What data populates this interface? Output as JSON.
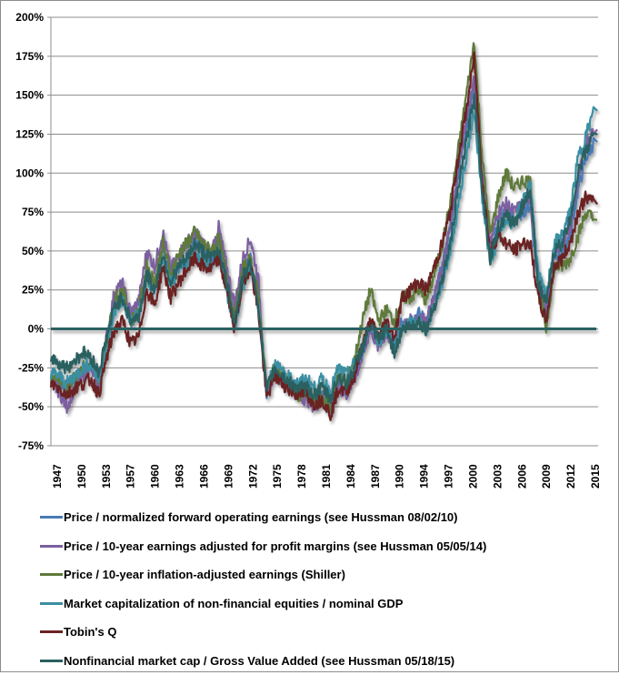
{
  "chart_data": {
    "type": "line",
    "title": "",
    "xlabel": "",
    "ylabel": "",
    "ylim": [
      -75,
      200
    ],
    "xlim": [
      1947,
      2015.5
    ],
    "grid": true,
    "legend_position": "bottom",
    "y_ticks": [
      "200%",
      "175%",
      "150%",
      "125%",
      "100%",
      "75%",
      "50%",
      "25%",
      "0%",
      "-25%",
      "-50%",
      "-75%"
    ],
    "y_tick_values": [
      200,
      175,
      150,
      125,
      100,
      75,
      50,
      25,
      0,
      -25,
      -50,
      -75
    ],
    "x_ticks": [
      "1947",
      "1950",
      "1953",
      "1957",
      "1960",
      "1963",
      "1966",
      "1969",
      "1972",
      "1975",
      "1978",
      "1981",
      "1984",
      "1987",
      "1990",
      "1994",
      "1997",
      "2000",
      "2003",
      "2006",
      "2009",
      "2012",
      "2015"
    ],
    "x": [
      1947,
      1948,
      1949,
      1950,
      1951,
      1952,
      1953,
      1954,
      1955,
      1956,
      1957,
      1958,
      1959,
      1960,
      1961,
      1962,
      1963,
      1964,
      1965,
      1966,
      1967,
      1968,
      1969,
      1970,
      1971,
      1972,
      1973,
      1974,
      1975,
      1976,
      1977,
      1978,
      1979,
      1980,
      1981,
      1982,
      1983,
      1984,
      1985,
      1986,
      1987,
      1988,
      1989,
      1990,
      1991,
      1992,
      1993,
      1994,
      1995,
      1996,
      1997,
      1998,
      1999,
      2000,
      2001,
      2002,
      2003,
      2004,
      2005,
      2006,
      2007,
      2008,
      2009,
      2010,
      2011,
      2012,
      2013,
      2014,
      2015
    ],
    "series": [
      {
        "name": "Price / normalized forward operating earnings (see Hussman 08/02/10)",
        "color": "#4a7ab5",
        "values": [
          -30,
          -33,
          -38,
          -32,
          -28,
          -25,
          -35,
          -10,
          15,
          20,
          5,
          10,
          35,
          25,
          50,
          30,
          40,
          45,
          55,
          50,
          45,
          55,
          30,
          10,
          35,
          45,
          15,
          -40,
          -25,
          -30,
          -35,
          -40,
          -40,
          -45,
          -42,
          -50,
          -35,
          -40,
          -30,
          -15,
          0,
          -10,
          0,
          -10,
          5,
          5,
          10,
          5,
          20,
          40,
          65,
          100,
          130,
          155,
          95,
          45,
          70,
          75,
          70,
          75,
          80,
          25,
          10,
          45,
          50,
          60,
          90,
          110,
          120
        ]
      },
      {
        "name": "Price / 10-year earnings adjusted for profit margins (see Hussman 05/05/14)",
        "color": "#7b5fa0",
        "values": [
          -35,
          -40,
          -50,
          -38,
          -30,
          -25,
          -38,
          -5,
          25,
          28,
          10,
          18,
          50,
          40,
          62,
          38,
          48,
          55,
          62,
          55,
          48,
          65,
          40,
          15,
          45,
          58,
          30,
          -42,
          -28,
          -33,
          -38,
          -43,
          -45,
          -50,
          -45,
          -55,
          -38,
          -42,
          -32,
          -18,
          0,
          -12,
          -2,
          -12,
          2,
          5,
          8,
          5,
          20,
          40,
          65,
          105,
          135,
          160,
          100,
          55,
          75,
          80,
          75,
          80,
          85,
          30,
          15,
          50,
          55,
          65,
          95,
          120,
          128
        ]
      },
      {
        "name": "Price / 10-year inflation-adjusted earnings (Shiller)",
        "color": "#5f7a3a",
        "values": [
          -30,
          -32,
          -38,
          -30,
          -25,
          -22,
          -33,
          -8,
          20,
          25,
          5,
          12,
          40,
          30,
          55,
          35,
          48,
          55,
          62,
          55,
          50,
          58,
          35,
          5,
          38,
          45,
          20,
          -40,
          -25,
          -30,
          -36,
          -42,
          -42,
          -48,
          -44,
          -52,
          -30,
          -35,
          -20,
          5,
          25,
          5,
          12,
          5,
          20,
          20,
          25,
          18,
          35,
          55,
          80,
          115,
          150,
          185,
          110,
          60,
          85,
          100,
          90,
          95,
          95,
          30,
          0,
          40,
          40,
          45,
          60,
          75,
          70
        ]
      },
      {
        "name": "Market capitalization of non-financial equities / nominal GDP",
        "color": "#3a8fa3",
        "values": [
          -28,
          -30,
          -35,
          -30,
          -25,
          -22,
          -33,
          -10,
          12,
          18,
          5,
          10,
          30,
          25,
          45,
          28,
          38,
          42,
          48,
          45,
          40,
          45,
          25,
          0,
          28,
          40,
          15,
          -38,
          -22,
          -28,
          -32,
          -35,
          -32,
          -38,
          -32,
          -40,
          -25,
          -30,
          -22,
          -12,
          5,
          -8,
          0,
          -12,
          2,
          3,
          5,
          0,
          15,
          30,
          50,
          80,
          110,
          140,
          85,
          40,
          60,
          70,
          68,
          80,
          95,
          35,
          20,
          55,
          60,
          75,
          110,
          125,
          140
        ]
      },
      {
        "name": "Tobin's Q",
        "color": "#6b2424",
        "values": [
          -35,
          -38,
          -42,
          -38,
          -35,
          -32,
          -42,
          -18,
          0,
          5,
          -10,
          -5,
          25,
          15,
          40,
          20,
          30,
          38,
          45,
          40,
          38,
          45,
          25,
          0,
          30,
          40,
          10,
          -45,
          -30,
          -35,
          -40,
          -42,
          -42,
          -48,
          -45,
          -55,
          -38,
          -40,
          -30,
          -10,
          5,
          -5,
          5,
          -5,
          20,
          25,
          30,
          25,
          40,
          55,
          75,
          110,
          140,
          175,
          95,
          50,
          60,
          55,
          50,
          55,
          55,
          20,
          5,
          40,
          45,
          55,
          75,
          85,
          80
        ]
      },
      {
        "name": "Nonfinancial market cap / Gross Value Added (see Hussman 05/18/15)",
        "color": "#2b6060",
        "values": [
          -18,
          -22,
          -25,
          -20,
          -15,
          -18,
          -28,
          -5,
          15,
          20,
          5,
          8,
          35,
          25,
          48,
          30,
          40,
          45,
          55,
          50,
          45,
          52,
          30,
          5,
          33,
          42,
          15,
          -40,
          -25,
          -30,
          -35,
          -38,
          -38,
          -42,
          -38,
          -45,
          -30,
          -35,
          -25,
          -12,
          2,
          -8,
          0,
          -15,
          0,
          2,
          5,
          0,
          15,
          32,
          55,
          90,
          120,
          150,
          90,
          45,
          65,
          72,
          68,
          78,
          90,
          30,
          15,
          50,
          55,
          70,
          100,
          115,
          125
        ]
      }
    ],
    "zero_line": {
      "value": 0,
      "color": "#2b6060"
    }
  }
}
